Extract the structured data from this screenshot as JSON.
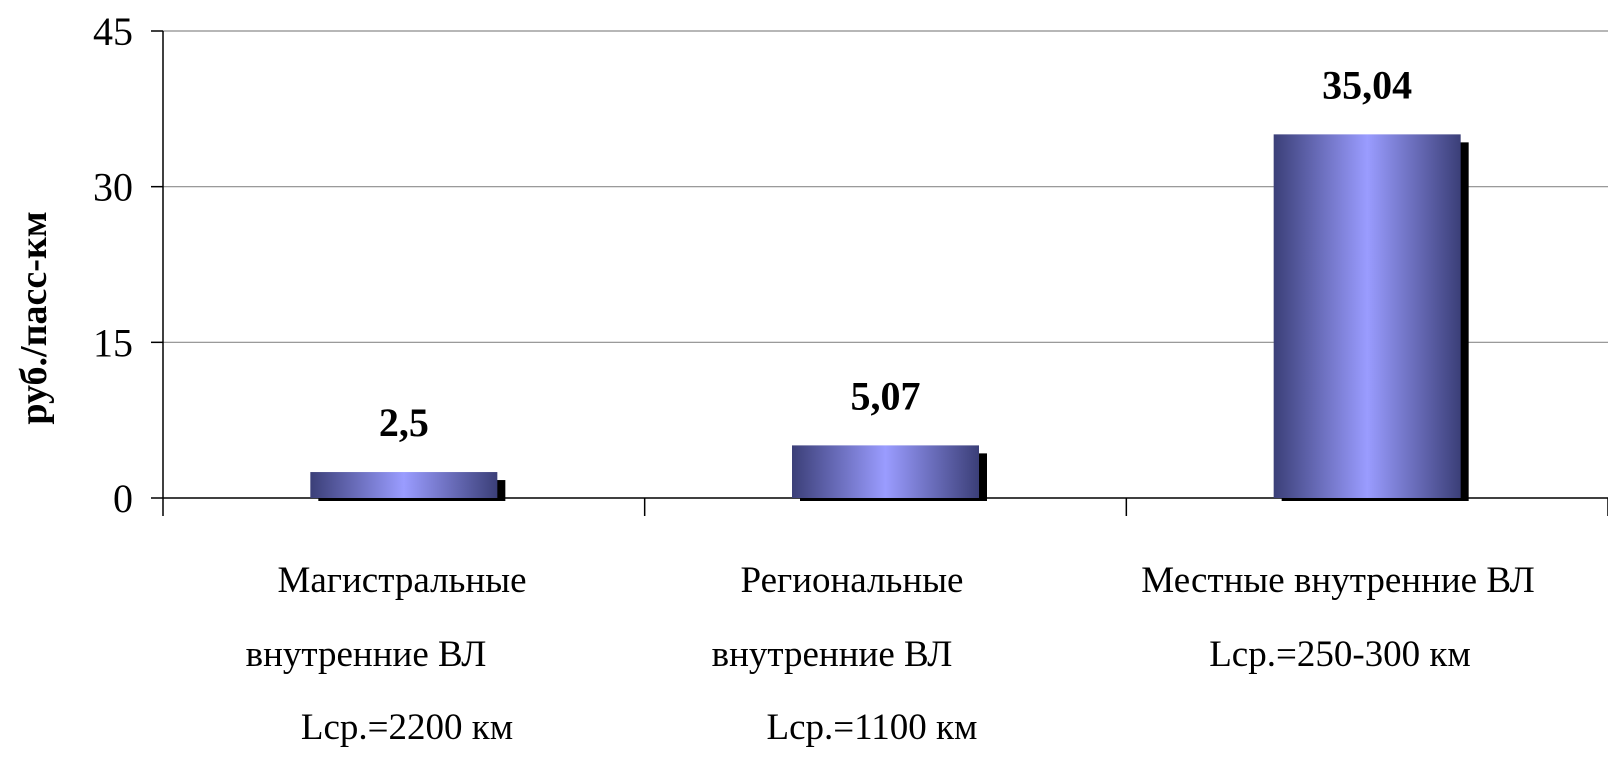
{
  "chart_data": {
    "type": "bar",
    "title": "",
    "ylabel": "руб./пасс-км",
    "xlabel": "",
    "ylim": [
      0,
      45
    ],
    "yticks": [
      0,
      15,
      30,
      45
    ],
    "ytick_labels": [
      "0",
      "15",
      "30",
      "45"
    ],
    "grid": true,
    "legend": "none",
    "categories": [
      {
        "lines": [
          "Магистральные",
          "внутренние ВЛ",
          "Lср.=2200 км"
        ]
      },
      {
        "lines": [
          "Региональные",
          "внутренние ВЛ",
          "Lср.=1100 км"
        ]
      },
      {
        "lines": [
          "Местные внутренние ВЛ",
          "Lср.=250-300 км"
        ]
      }
    ],
    "values": [
      2.5,
      5.07,
      35.04
    ],
    "data_labels": [
      "2,5",
      "5,07",
      "35,04"
    ],
    "colors": {
      "bar_edge": "#3b3f78",
      "bar_mid": "#9a9cff",
      "shadow": "#000000",
      "grid": "#8c8c8c",
      "axis": "#000000"
    }
  }
}
